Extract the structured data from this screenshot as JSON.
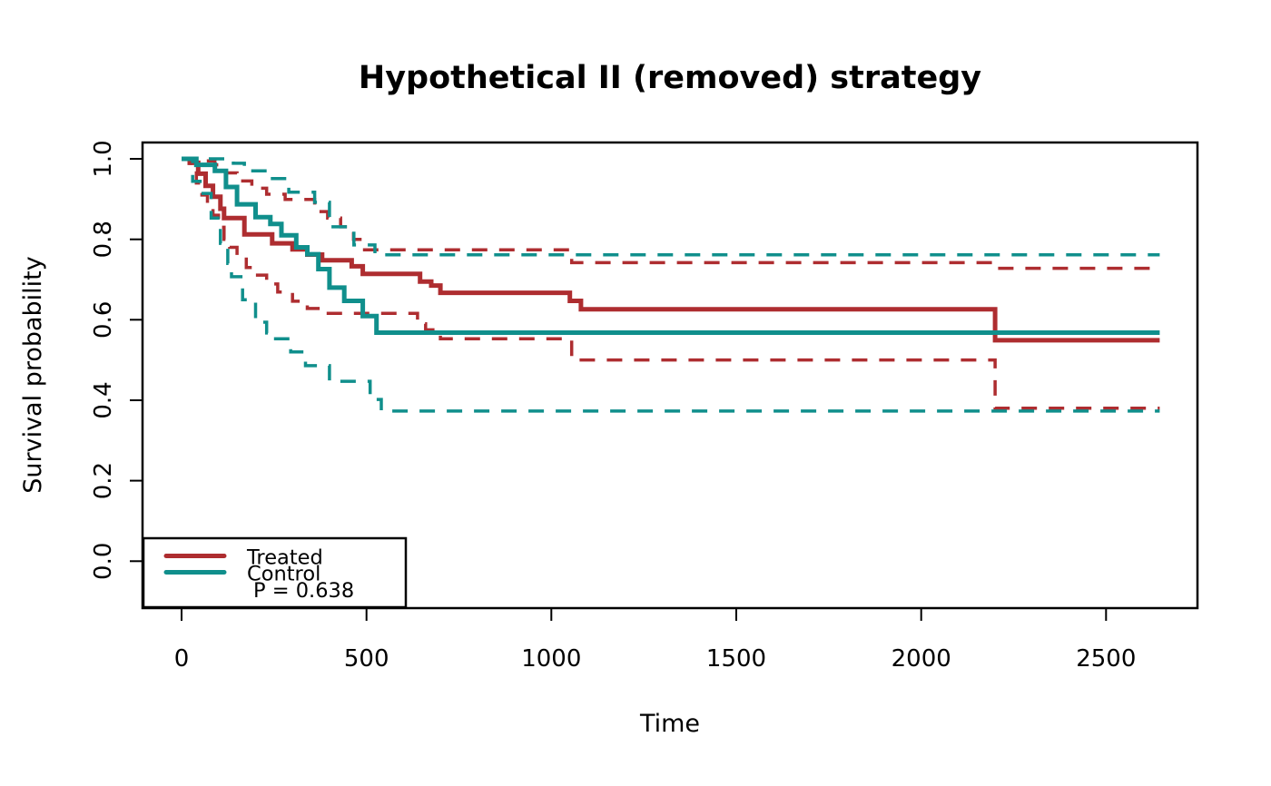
{
  "chart_data": {
    "type": "line",
    "subtype": "kaplan-meier-step",
    "title": "Hypothetical II (removed) strategy",
    "xlabel": "Time",
    "ylabel": "Survival probability",
    "x_ticks": [
      0,
      500,
      1000,
      1500,
      2000,
      2500
    ],
    "x_tick_labels": [
      "0",
      "500",
      "1000",
      "1500",
      "2000",
      "2500"
    ],
    "y_ticks": [
      0.0,
      0.2,
      0.4,
      0.6,
      0.8,
      1.0
    ],
    "y_tick_labels": [
      "0.0",
      "0.2",
      "0.4",
      "0.6",
      "0.8",
      "1.0"
    ],
    "x_axis_range": [
      -106,
      2747
    ],
    "y_axis_range": [
      -0.117,
      1.041
    ],
    "t_end": 2645,
    "grid": false,
    "colors": {
      "treated": "#AE2D30",
      "control": "#108F8C",
      "frame": "#000000",
      "background": "#ffffff"
    },
    "legend": {
      "position": "bottomleft",
      "entries": [
        {
          "id": "treated",
          "label": "Treated",
          "color": "#AE2D30"
        },
        {
          "id": "control",
          "label": "Control",
          "color": "#108F8C"
        }
      ],
      "note": "P = 0.638"
    },
    "series": [
      {
        "id": "treated-upper-ci",
        "name": "Treated upper 95% CI",
        "color": "#AE2D30",
        "style": "dashed",
        "points": [
          [
            0,
            1.0
          ],
          [
            50,
            0.995
          ],
          [
            90,
            0.985
          ],
          [
            120,
            0.965
          ],
          [
            150,
            0.945
          ],
          [
            190,
            0.927
          ],
          [
            230,
            0.912
          ],
          [
            280,
            0.899
          ],
          [
            360,
            0.869
          ],
          [
            395,
            0.853
          ],
          [
            430,
            0.831
          ],
          [
            465,
            0.8
          ],
          [
            487,
            0.774
          ],
          [
            1055,
            0.742
          ],
          [
            2200,
            0.728
          ],
          [
            2645,
            0.728
          ]
        ]
      },
      {
        "id": "treated-lower-ci",
        "name": "Treated lower 95% CI",
        "color": "#AE2D30",
        "style": "dashed",
        "points": [
          [
            0,
            1.0
          ],
          [
            25,
            0.97
          ],
          [
            40,
            0.94
          ],
          [
            55,
            0.91
          ],
          [
            70,
            0.885
          ],
          [
            85,
            0.86
          ],
          [
            100,
            0.83
          ],
          [
            115,
            0.8
          ],
          [
            130,
            0.78
          ],
          [
            150,
            0.756
          ],
          [
            175,
            0.73
          ],
          [
            200,
            0.711
          ],
          [
            230,
            0.689
          ],
          [
            260,
            0.669
          ],
          [
            300,
            0.646
          ],
          [
            340,
            0.628
          ],
          [
            375,
            0.616
          ],
          [
            638,
            0.59
          ],
          [
            660,
            0.575
          ],
          [
            700,
            0.553
          ],
          [
            1055,
            0.5
          ],
          [
            2200,
            0.38
          ],
          [
            2645,
            0.38
          ]
        ]
      },
      {
        "id": "treated",
        "name": "Treated",
        "color": "#AE2D30",
        "style": "solid",
        "points": [
          [
            0,
            1.0
          ],
          [
            22,
            0.99
          ],
          [
            45,
            0.963
          ],
          [
            65,
            0.933
          ],
          [
            85,
            0.906
          ],
          [
            105,
            0.876
          ],
          [
            115,
            0.853
          ],
          [
            170,
            0.812
          ],
          [
            245,
            0.79
          ],
          [
            300,
            0.775
          ],
          [
            340,
            0.762
          ],
          [
            380,
            0.748
          ],
          [
            460,
            0.733
          ],
          [
            490,
            0.714
          ],
          [
            645,
            0.695
          ],
          [
            675,
            0.685
          ],
          [
            700,
            0.667
          ],
          [
            1050,
            0.647
          ],
          [
            1080,
            0.626
          ],
          [
            2200,
            0.549
          ],
          [
            2645,
            0.549
          ]
        ]
      },
      {
        "id": "control-upper-ci",
        "name": "Control upper 95% CI",
        "color": "#108F8C",
        "style": "dashed",
        "points": [
          [
            0,
            1.0
          ],
          [
            140,
            0.989
          ],
          [
            170,
            0.97
          ],
          [
            235,
            0.951
          ],
          [
            290,
            0.917
          ],
          [
            360,
            0.892
          ],
          [
            400,
            0.831
          ],
          [
            466,
            0.786
          ],
          [
            523,
            0.7615
          ],
          [
            2645,
            0.7615
          ]
        ]
      },
      {
        "id": "control-lower-ci",
        "name": "Control lower 95% CI",
        "color": "#108F8C",
        "style": "dashed",
        "points": [
          [
            0,
            1.0
          ],
          [
            30,
            0.944
          ],
          [
            50,
            0.914
          ],
          [
            80,
            0.853
          ],
          [
            105,
            0.79
          ],
          [
            125,
            0.74
          ],
          [
            135,
            0.707
          ],
          [
            165,
            0.65
          ],
          [
            200,
            0.594
          ],
          [
            230,
            0.567
          ],
          [
            250,
            0.553
          ],
          [
            295,
            0.52
          ],
          [
            335,
            0.486
          ],
          [
            400,
            0.447
          ],
          [
            510,
            0.402
          ],
          [
            540,
            0.373
          ],
          [
            2645,
            0.373
          ]
        ]
      },
      {
        "id": "control",
        "name": "Control",
        "color": "#108F8C",
        "style": "solid",
        "points": [
          [
            0,
            1.0
          ],
          [
            40,
            0.985
          ],
          [
            90,
            0.97
          ],
          [
            120,
            0.93
          ],
          [
            150,
            0.887
          ],
          [
            200,
            0.855
          ],
          [
            240,
            0.838
          ],
          [
            270,
            0.81
          ],
          [
            310,
            0.78
          ],
          [
            340,
            0.763
          ],
          [
            370,
            0.726
          ],
          [
            400,
            0.68
          ],
          [
            440,
            0.647
          ],
          [
            490,
            0.609
          ],
          [
            527,
            0.568
          ],
          [
            2645,
            0.568
          ]
        ]
      }
    ]
  }
}
